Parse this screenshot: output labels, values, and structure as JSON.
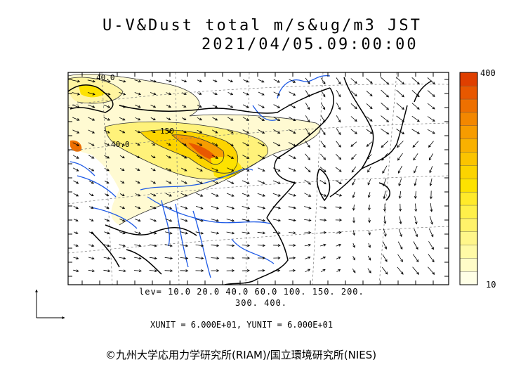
{
  "title": {
    "line1": "U-V&Dust total m/s&ug/m3 JST",
    "line2": "2021/04/05.09:00:00"
  },
  "contour_labels": [
    "40.0",
    "150",
    "40.0"
  ],
  "levels": {
    "line1": "lev= 10.0 20.0 40.0 60.0 100. 150. 200.",
    "line2": "300. 400."
  },
  "units_text": "XUNIT = 6.000E+01, YUNIT = 6.000E+01",
  "colorbar": {
    "max_label": "400",
    "min_label": "10",
    "colors": [
      "#ffffe6",
      "#fffcc8",
      "#fffaa6",
      "#fff68a",
      "#fff26a",
      "#fff04a",
      "#ffea2a",
      "#fde200",
      "#fcd400",
      "#fbc400",
      "#f9b100",
      "#f79c00",
      "#f38700",
      "#ee7000",
      "#e85800",
      "#df3f00"
    ]
  },
  "legend_colors": {
    "land_boundary": "#000000",
    "river": "#1e5ae6",
    "grid": "#777777"
  },
  "icons": [
    "wind-reference-arrow-icon"
  ],
  "credit": "©九州大学応用力学研究所(RIAM)/国立環境研究所(NIES)"
}
